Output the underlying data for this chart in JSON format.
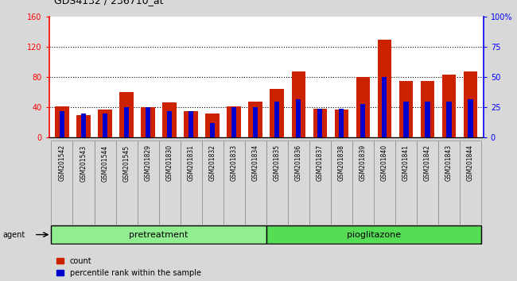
{
  "title": "GDS4132 / 236710_at",
  "samples": [
    "GSM201542",
    "GSM201543",
    "GSM201544",
    "GSM201545",
    "GSM201829",
    "GSM201830",
    "GSM201831",
    "GSM201832",
    "GSM201833",
    "GSM201834",
    "GSM201835",
    "GSM201836",
    "GSM201837",
    "GSM201838",
    "GSM201839",
    "GSM201840",
    "GSM201841",
    "GSM201842",
    "GSM201843",
    "GSM201844"
  ],
  "count_values": [
    42,
    30,
    37,
    60,
    40,
    47,
    35,
    32,
    42,
    48,
    65,
    88,
    38,
    37,
    80,
    130,
    75,
    75,
    83,
    88
  ],
  "percentile_values": [
    22,
    20,
    20,
    25,
    25,
    22,
    22,
    12,
    25,
    25,
    30,
    32,
    24,
    24,
    28,
    50,
    30,
    30,
    30,
    32
  ],
  "bar_color_count": "#CC2200",
  "bar_color_pct": "#0000CC",
  "ylim_left": [
    0,
    160
  ],
  "ylim_right": [
    0,
    100
  ],
  "yticks_left": [
    0,
    40,
    80,
    120,
    160
  ],
  "ytick_labels_right": [
    "0",
    "25",
    "50",
    "75",
    "100%"
  ],
  "background_color": "#D8D8D8",
  "plot_bg_color": "#FFFFFF",
  "legend_count": "count",
  "legend_pct": "percentile rank within the sample",
  "pre_label": "pretreatment",
  "pio_label": "pioglitazone",
  "agent_label": "agent",
  "pre_color": "#90EE90",
  "pio_color": "#55DD55"
}
